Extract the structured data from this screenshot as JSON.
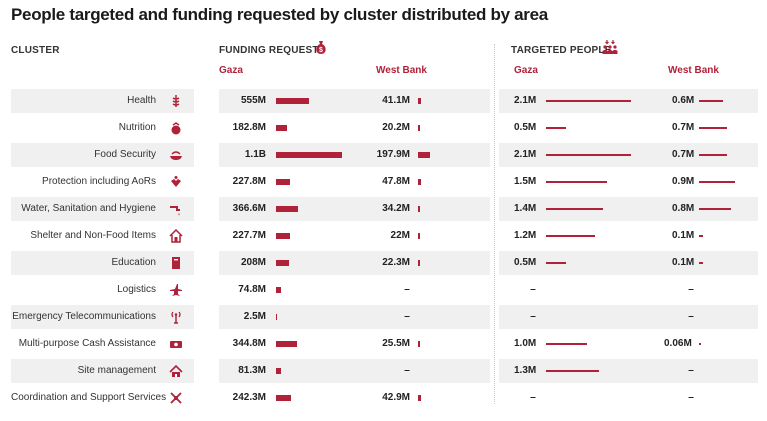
{
  "title": "People targeted and funding requested by cluster distributed by area",
  "headers": {
    "cluster": "CLUSTER",
    "funding": "FUNDING REQUESTS",
    "targeted": "TARGETED PEOPLE",
    "gaza": "Gaza",
    "west_bank": "West Bank"
  },
  "colors": {
    "accent": "#b0223a",
    "row_bg": "#f0f0f0"
  },
  "chart_data": {
    "type": "table",
    "units": {
      "funding": "USD",
      "targeted": "people"
    },
    "rows": [
      {
        "cluster": "Health",
        "icon": "health-icon",
        "fund_gaza": 555,
        "fund_gaza_label": "555M",
        "fund_wb": 41.1,
        "fund_wb_label": "41.1M",
        "tgt_gaza": 2.1,
        "tgt_gaza_label": "2.1M",
        "tgt_wb": 0.6,
        "tgt_wb_label": "0.6M",
        "shaded": true
      },
      {
        "cluster": "Nutrition",
        "icon": "nutrition-icon",
        "fund_gaza": 182.8,
        "fund_gaza_label": "182.8M",
        "fund_wb": 20.2,
        "fund_wb_label": "20.2M",
        "tgt_gaza": 0.5,
        "tgt_gaza_label": "0.5M",
        "tgt_wb": 0.7,
        "tgt_wb_label": "0.7M",
        "shaded": false
      },
      {
        "cluster": "Food Security",
        "icon": "food-security-icon",
        "fund_gaza": 1100,
        "fund_gaza_label": "1.1B",
        "fund_wb": 197.9,
        "fund_wb_label": "197.9M",
        "tgt_gaza": 2.1,
        "tgt_gaza_label": "2.1M",
        "tgt_wb": 0.7,
        "tgt_wb_label": "0.7M",
        "shaded": true
      },
      {
        "cluster": "Protection including AoRs",
        "icon": "protection-icon",
        "fund_gaza": 227.8,
        "fund_gaza_label": "227.8M",
        "fund_wb": 47.8,
        "fund_wb_label": "47.8M",
        "tgt_gaza": 1.5,
        "tgt_gaza_label": "1.5M",
        "tgt_wb": 0.9,
        "tgt_wb_label": "0.9M",
        "shaded": false
      },
      {
        "cluster": "Water, Sanitation and Hygiene",
        "icon": "wash-icon",
        "fund_gaza": 366.6,
        "fund_gaza_label": "366.6M",
        "fund_wb": 34.2,
        "fund_wb_label": "34.2M",
        "tgt_gaza": 1.4,
        "tgt_gaza_label": "1.4M",
        "tgt_wb": 0.8,
        "tgt_wb_label": "0.8M",
        "shaded": true
      },
      {
        "cluster": "Shelter and Non-Food Items",
        "icon": "shelter-icon",
        "fund_gaza": 227.7,
        "fund_gaza_label": "227.7M",
        "fund_wb": 22,
        "fund_wb_label": "22M",
        "tgt_gaza": 1.2,
        "tgt_gaza_label": "1.2M",
        "tgt_wb": 0.1,
        "tgt_wb_label": "0.1M",
        "shaded": false
      },
      {
        "cluster": "Education",
        "icon": "education-icon",
        "fund_gaza": 208,
        "fund_gaza_label": "208M",
        "fund_wb": 22.3,
        "fund_wb_label": "22.3M",
        "tgt_gaza": 0.5,
        "tgt_gaza_label": "0.5M",
        "tgt_wb": 0.1,
        "tgt_wb_label": "0.1M",
        "shaded": true
      },
      {
        "cluster": "Logistics",
        "icon": "logistics-icon",
        "fund_gaza": 74.8,
        "fund_gaza_label": "74.8M",
        "fund_wb": null,
        "fund_wb_label": "–",
        "tgt_gaza": null,
        "tgt_gaza_label": "–",
        "tgt_wb": null,
        "tgt_wb_label": "–",
        "shaded": false
      },
      {
        "cluster": "Emergency Telecommunications",
        "icon": "telecom-icon",
        "fund_gaza": 2.5,
        "fund_gaza_label": "2.5M",
        "fund_wb": null,
        "fund_wb_label": "–",
        "tgt_gaza": null,
        "tgt_gaza_label": "–",
        "tgt_wb": null,
        "tgt_wb_label": "–",
        "shaded": true
      },
      {
        "cluster": "Multi-purpose Cash Assistance",
        "icon": "cash-icon",
        "fund_gaza": 344.8,
        "fund_gaza_label": "344.8M",
        "fund_wb": 25.5,
        "fund_wb_label": "25.5M",
        "tgt_gaza": 1.0,
        "tgt_gaza_label": "1.0M",
        "tgt_wb": 0.06,
        "tgt_wb_label": "0.06M",
        "shaded": false
      },
      {
        "cluster": "Site management",
        "icon": "site-management-icon",
        "fund_gaza": 81.3,
        "fund_gaza_label": "81.3M",
        "fund_wb": null,
        "fund_wb_label": "–",
        "tgt_gaza": 1.3,
        "tgt_gaza_label": "1.3M",
        "tgt_wb": null,
        "tgt_wb_label": "–",
        "shaded": true
      },
      {
        "cluster": "Coordination and Support Services",
        "icon": "coordination-icon",
        "fund_gaza": 242.3,
        "fund_gaza_label": "242.3M",
        "fund_wb": 42.9,
        "fund_wb_label": "42.9M",
        "tgt_gaza": null,
        "tgt_gaza_label": "–",
        "tgt_wb": null,
        "tgt_wb_label": "–",
        "shaded": false
      }
    ]
  }
}
